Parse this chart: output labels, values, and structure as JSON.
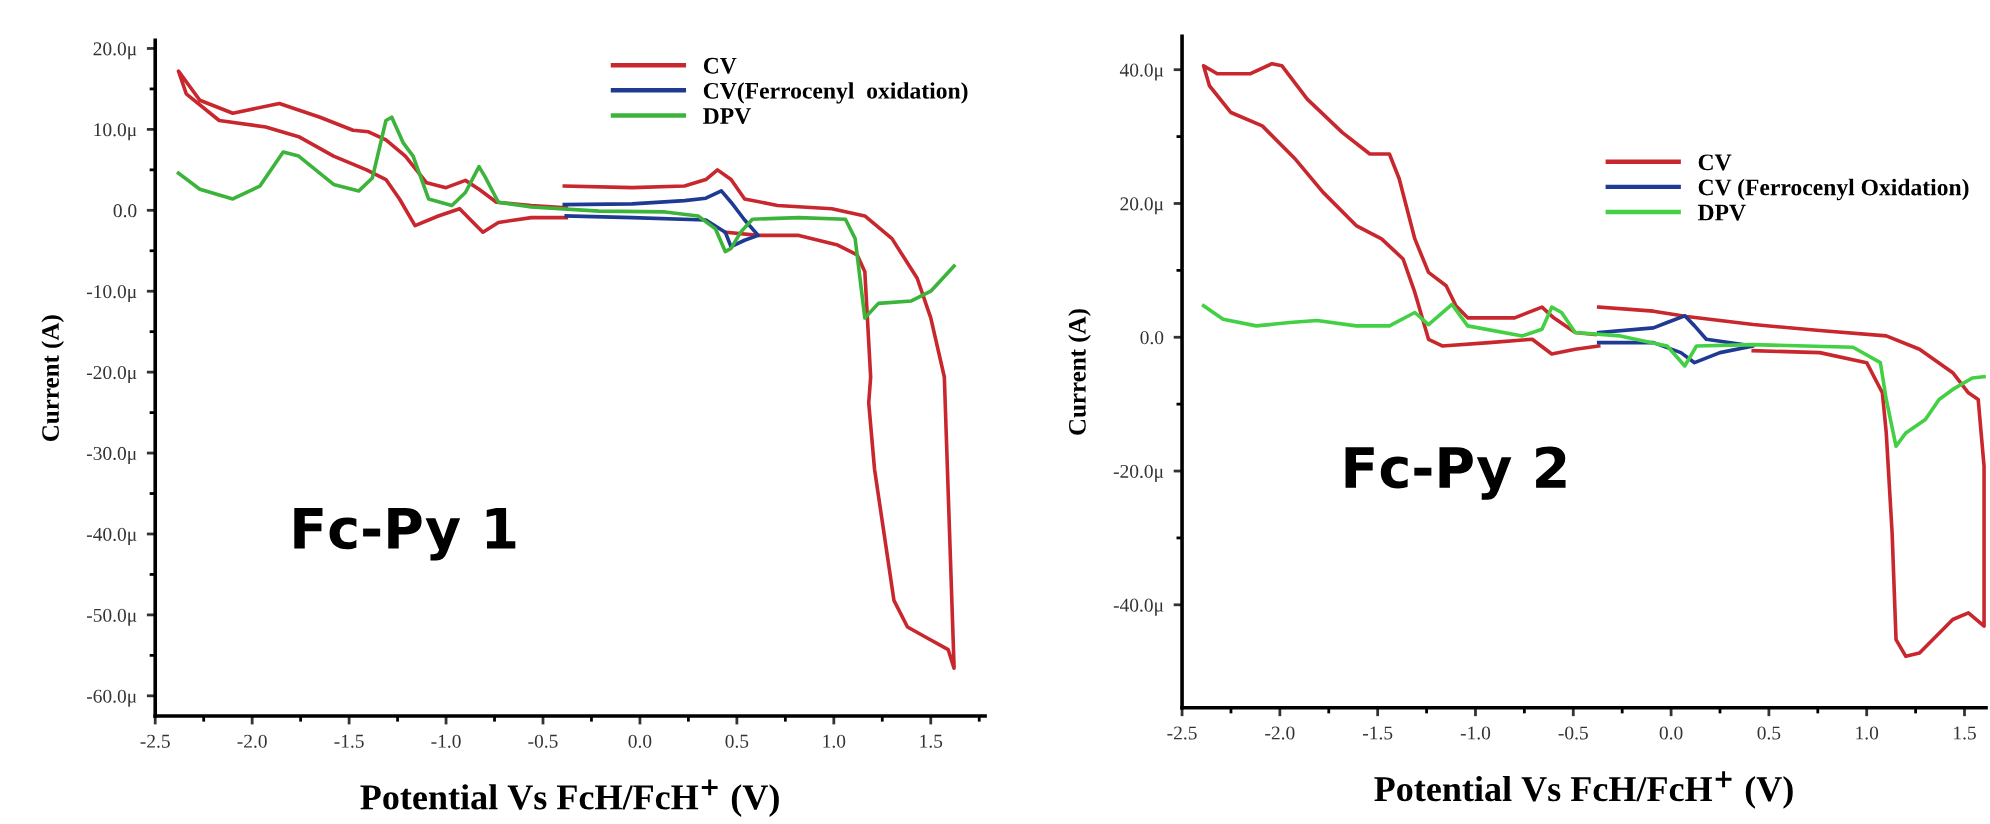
{
  "chart_data": [
    {
      "type": "line",
      "xlabel": "Potential Vs FcH/FcH$^{+}$ (V)",
      "ylabel": "Current (A)",
      "annotations": [
        "Fc-Py 1"
      ],
      "legend": "top right",
      "xlim": [
        -2.5,
        1.78
      ],
      "ylim": [
        -62.5,
        21
      ],
      "xticks": [
        {
          "value": -2.5,
          "label": "-2.5"
        },
        {
          "value": -2.0,
          "label": "-2.0"
        },
        {
          "value": -1.5,
          "label": "-1.5"
        },
        {
          "value": -1.0,
          "label": "-1.0"
        },
        {
          "value": -0.5,
          "label": "-0.5"
        },
        {
          "value": 0.0,
          "label": "0.0"
        },
        {
          "value": 0.5,
          "label": "0.5"
        },
        {
          "value": 1.0,
          "label": "1.0"
        },
        {
          "value": 1.5,
          "label": "1.5"
        }
      ],
      "yticks": [
        {
          "value": -60,
          "label": "-60.0μ"
        },
        {
          "value": -50,
          "label": "-50.0μ"
        },
        {
          "value": -40,
          "label": "-40.0μ"
        },
        {
          "value": -30,
          "label": "-30.0μ"
        },
        {
          "value": -20,
          "label": "-20.0μ"
        },
        {
          "value": -10,
          "label": "-10.0μ"
        },
        {
          "value": 0,
          "label": "0.0"
        },
        {
          "value": 10,
          "label": "10.0μ"
        },
        {
          "value": 20,
          "label": "20.0μ"
        }
      ],
      "series": [
        {
          "name": "CV",
          "color": "#c8282d",
          "x": [
            -0.38,
            -0.56,
            -0.73,
            -0.81,
            -0.86,
            -0.93,
            -1.04,
            -1.16,
            -1.24,
            -1.31,
            -1.41,
            -1.58,
            -1.76,
            -1.93,
            -2.17,
            -2.34,
            -2.38,
            -2.27,
            -2.1,
            -1.86,
            -1.65,
            -1.48,
            -1.4,
            -1.31,
            -1.21,
            -1.1,
            -1.0,
            -0.9,
            -0.83,
            -0.74,
            -0.56,
            -0.38,
            -0.385,
            -0.39,
            -0.04,
            0.23,
            0.34,
            0.4,
            0.47,
            0.54,
            0.71,
            0.99,
            1.16,
            1.3,
            1.43,
            1.5,
            1.57,
            1.62,
            1.62,
            1.59,
            1.47,
            1.38,
            1.31,
            1.26,
            1.21,
            1.18,
            1.19,
            1.16,
            1.12,
            1.02,
            0.82,
            0.61,
            0.44
          ],
          "values": [
            -0.9,
            -0.9,
            -1.5,
            -2.7,
            -1.5,
            0.2,
            -0.7,
            -1.9,
            1.4,
            3.8,
            5.0,
            6.7,
            9.1,
            10.3,
            11.1,
            14.4,
            17.2,
            13.6,
            12.0,
            13.2,
            11.5,
            9.9,
            9.7,
            8.7,
            6.7,
            3.4,
            2.8,
            3.7,
            2.6,
            1.0,
            0.6,
            0.3,
            null,
            3.0,
            2.8,
            3.0,
            3.8,
            5.0,
            3.8,
            1.4,
            0.6,
            0.2,
            -0.7,
            -3.5,
            -8.4,
            -13.3,
            -20.6,
            -56.3,
            -56.6,
            -54.3,
            -52.7,
            -51.5,
            -48.2,
            -40.1,
            -32.0,
            -23.8,
            -20.6,
            -7.6,
            -5.5,
            -4.3,
            -3.1,
            -3.1,
            -2.7
          ]
        },
        {
          "name": "CV(Ferrocenyl  oxidation)",
          "color": "#1f3a93",
          "x": [
            -0.39,
            -0.04,
            0.23,
            0.34,
            0.42,
            0.47,
            0.54,
            0.61,
            0.54,
            0.47,
            0.44,
            0.34,
            -0.04,
            -0.38
          ],
          "values": [
            0.7,
            0.8,
            1.2,
            1.5,
            2.4,
            1.0,
            -1.2,
            -3.1,
            -3.7,
            -4.5,
            -2.7,
            -1.2,
            -0.9,
            -0.7
          ]
        },
        {
          "name": "DPV",
          "color": "#3cb43c",
          "x": [
            -2.38,
            -2.27,
            -2.1,
            -1.96,
            -1.84,
            -1.76,
            -1.58,
            -1.45,
            -1.38,
            -1.31,
            -1.28,
            -1.22,
            -1.17,
            -1.09,
            -0.97,
            -0.9,
            -0.83,
            -0.8,
            -0.73,
            -0.56,
            -0.21,
            0.13,
            0.3,
            0.39,
            0.44,
            0.47,
            0.52,
            0.58,
            0.82,
            1.06,
            1.11,
            1.16,
            1.23,
            1.4,
            1.5,
            1.62
          ],
          "values": [
            4.6,
            2.6,
            1.4,
            3.0,
            7.2,
            6.7,
            3.2,
            2.4,
            4.0,
            11.1,
            11.5,
            8.3,
            6.7,
            1.4,
            0.6,
            2.2,
            5.4,
            4.2,
            1.0,
            0.4,
            -0.1,
            -0.2,
            -0.7,
            -2.3,
            -5.1,
            -4.7,
            -2.7,
            -1.1,
            -0.9,
            -1.1,
            -3.5,
            -13.3,
            -11.5,
            -11.2,
            -10.0,
            -6.9
          ]
        }
      ]
    },
    {
      "type": "line",
      "xlabel": "Potential Vs FcH/FcH$^{+}$ (V)",
      "ylabel": "Current (A)",
      "annotations": [
        "Fc-Py 2"
      ],
      "legend": "top right",
      "xlim": [
        -2.5,
        1.61
      ],
      "ylim": [
        -55.4,
        45
      ],
      "xticks": [
        {
          "value": -2.5,
          "label": "-2.5"
        },
        {
          "value": -2.0,
          "label": "-2.0"
        },
        {
          "value": -1.5,
          "label": "-1.5"
        },
        {
          "value": -1.0,
          "label": "-1.0"
        },
        {
          "value": -0.5,
          "label": "-0.5"
        },
        {
          "value": 0.0,
          "label": "0.0"
        },
        {
          "value": 0.5,
          "label": "0.5"
        },
        {
          "value": 1.0,
          "label": "1.0"
        },
        {
          "value": 1.5,
          "label": "1.5"
        }
      ],
      "yticks": [
        {
          "value": -40,
          "label": "-40.0μ"
        },
        {
          "value": -20,
          "label": "-20.0μ"
        },
        {
          "value": 0,
          "label": "0.0"
        },
        {
          "value": 20,
          "label": "20.0μ"
        },
        {
          "value": 40,
          "label": "40.0μ"
        }
      ],
      "series": [
        {
          "name": "CV",
          "color": "#c8282d",
          "x": [
            -0.37,
            -0.49,
            -0.61,
            -0.71,
            -0.93,
            -1.17,
            -1.24,
            -1.31,
            -1.37,
            -1.48,
            -1.61,
            -1.78,
            -1.92,
            -2.09,
            -2.25,
            -2.36,
            -2.39,
            -2.32,
            -2.15,
            -2.04,
            -1.99,
            -1.86,
            -1.68,
            -1.54,
            -1.44,
            -1.39,
            -1.31,
            -1.24,
            -1.15,
            -1.1,
            -1.04,
            -0.8,
            -0.66,
            -0.6,
            -0.49,
            -0.39,
            -0.38,
            -0.37,
            -0.09,
            0.08,
            0.42,
            0.76,
            1.1,
            1.27,
            1.44,
            1.52,
            1.57,
            1.6,
            1.6,
            1.52,
            1.44,
            1.27,
            1.2,
            1.15,
            1.13,
            1.1,
            1.08,
            1.0,
            0.76,
            0.42
          ],
          "values": [
            -1.3,
            -1.8,
            -2.5,
            -0.3,
            -0.8,
            -1.3,
            -0.3,
            6.7,
            11.7,
            14.7,
            16.7,
            21.7,
            26.6,
            31.6,
            33.6,
            37.6,
            40.6,
            39.4,
            39.4,
            40.9,
            40.6,
            35.6,
            30.6,
            27.4,
            27.4,
            23.7,
            14.7,
            9.7,
            7.7,
            4.7,
            2.9,
            2.9,
            4.5,
            2.9,
            0.7,
            0.4,
            null,
            4.5,
            3.9,
            3.1,
            1.9,
            1.0,
            0.2,
            -1.8,
            -5.3,
            -8.3,
            -9.3,
            -19.3,
            -43.2,
            -41.2,
            -42.2,
            -47.2,
            -47.7,
            -45.2,
            -29.3,
            -14.3,
            -8.3,
            -3.8,
            -2.3,
            -2.0
          ]
        },
        {
          "name": "CV (Ferrocenyl Oxidation)",
          "color": "#1f3a93",
          "x": [
            -0.37,
            -0.09,
            -0.02,
            0.07,
            0.12,
            0.18,
            0.42,
            0.25,
            0.12,
            0.05,
            -0.09,
            -0.37
          ],
          "values": [
            0.7,
            1.4,
            2.2,
            3.2,
            1.7,
            -0.3,
            -1.3,
            -2.3,
            -3.8,
            -2.3,
            -0.8,
            -0.8
          ]
        },
        {
          "name": "DPV",
          "color": "#44d044",
          "x": [
            -2.39,
            -2.29,
            -2.12,
            -1.95,
            -1.81,
            -1.61,
            -1.44,
            -1.31,
            -1.24,
            -1.12,
            -1.04,
            -0.76,
            -0.66,
            -0.61,
            -0.56,
            -0.49,
            -0.26,
            -0.02,
            0.07,
            0.13,
            0.42,
            0.93,
            1.07,
            1.1,
            1.15,
            1.2,
            1.3,
            1.37,
            1.44,
            1.54,
            1.6
          ],
          "values": [
            4.7,
            2.7,
            1.7,
            2.2,
            2.5,
            1.7,
            1.7,
            3.7,
            1.9,
            4.9,
            1.7,
            0.2,
            1.2,
            4.5,
            3.7,
            0.7,
            0.2,
            -1.3,
            -4.3,
            -1.3,
            -1.1,
            -1.5,
            -3.8,
            -9.3,
            -16.3,
            -14.3,
            -12.3,
            -9.3,
            -7.8,
            -6.1,
            -5.9
          ]
        }
      ]
    }
  ]
}
